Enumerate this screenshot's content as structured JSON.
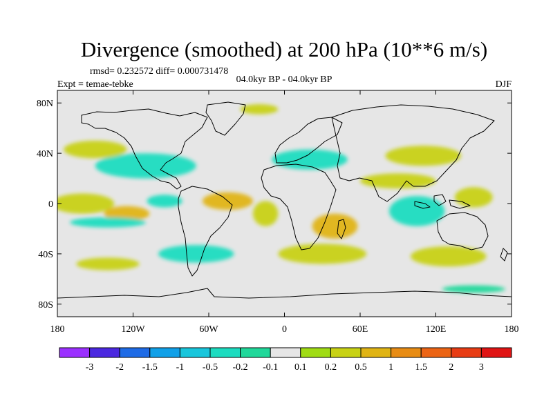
{
  "chart_data": {
    "type": "heatmap",
    "title": "Divergence (smoothed) at 200 hPa (10**6 m/s)",
    "stats_text": "rmsd= 0.232572 diff= 0.000731478",
    "experiment_text": "Expt = temae-tebke",
    "period_text": "04.0kyr BP - 04.0kyr BP",
    "season_text": "DJF",
    "xlim": [
      -180,
      180
    ],
    "ylim": [
      -90,
      90
    ],
    "x_ticks": [
      {
        "value": -180,
        "label": "180"
      },
      {
        "value": -120,
        "label": "120W"
      },
      {
        "value": -60,
        "label": "60W"
      },
      {
        "value": 0,
        "label": "0"
      },
      {
        "value": 60,
        "label": "60E"
      },
      {
        "value": 120,
        "label": "120E"
      },
      {
        "value": 180,
        "label": "180"
      }
    ],
    "y_ticks": [
      {
        "value": 80,
        "label": "80N"
      },
      {
        "value": 40,
        "label": "40N"
      },
      {
        "value": 0,
        "label": "0"
      },
      {
        "value": -40,
        "label": "40S"
      },
      {
        "value": -80,
        "label": "80S"
      }
    ],
    "colorbar": {
      "colors": [
        "#9b30ff",
        "#4b28e0",
        "#1e6be6",
        "#10a0e8",
        "#18c6dc",
        "#1cdcc0",
        "#20d89a",
        "#e6e6e6",
        "#a0dc14",
        "#c8d214",
        "#e0b414",
        "#e88c14",
        "#ec6414",
        "#e83c14",
        "#e01414"
      ],
      "labels": [
        "-3",
        "-2",
        "-1.5",
        "-1",
        "-0.5",
        "-0.2",
        "-0.1",
        "0.1",
        "0.2",
        "0.5",
        "1",
        "1.5",
        "2",
        "3"
      ]
    },
    "field_blobs": [
      {
        "lon": -160,
        "lat": 0,
        "rlon": 25,
        "rlat": 8,
        "value": 0.4
      },
      {
        "lon": -125,
        "lat": -8,
        "rlon": 18,
        "rlat": 6,
        "value": 0.6
      },
      {
        "lon": -140,
        "lat": -15,
        "rlon": 30,
        "rlat": 4,
        "value": -0.3
      },
      {
        "lon": -95,
        "lat": 2,
        "rlon": 14,
        "rlat": 5,
        "value": -0.3
      },
      {
        "lon": -45,
        "lat": 2,
        "rlon": 20,
        "rlat": 7,
        "value": 0.6
      },
      {
        "lon": -15,
        "lat": -8,
        "rlon": 10,
        "rlat": 10,
        "value": 0.4
      },
      {
        "lon": 40,
        "lat": -18,
        "rlon": 18,
        "rlat": 10,
        "value": 0.5
      },
      {
        "lon": 105,
        "lat": -6,
        "rlon": 22,
        "rlat": 12,
        "value": -0.4
      },
      {
        "lon": 150,
        "lat": 5,
        "rlon": 15,
        "rlat": 8,
        "value": 0.3
      },
      {
        "lon": -110,
        "lat": 30,
        "rlon": 40,
        "rlat": 10,
        "value": -0.3
      },
      {
        "lon": -150,
        "lat": 43,
        "rlon": 25,
        "rlat": 7,
        "value": 0.3
      },
      {
        "lon": 20,
        "lat": 35,
        "rlon": 30,
        "rlat": 8,
        "value": -0.3
      },
      {
        "lon": 110,
        "lat": 38,
        "rlon": 30,
        "rlat": 8,
        "value": 0.4
      },
      {
        "lon": 90,
        "lat": 18,
        "rlon": 30,
        "rlat": 6,
        "value": 0.2
      },
      {
        "lon": -70,
        "lat": -40,
        "rlon": 30,
        "rlat": 7,
        "value": -0.3
      },
      {
        "lon": 30,
        "lat": -40,
        "rlon": 35,
        "rlat": 8,
        "value": 0.4
      },
      {
        "lon": 130,
        "lat": -42,
        "rlon": 30,
        "rlat": 8,
        "value": 0.3
      },
      {
        "lon": -140,
        "lat": -48,
        "rlon": 25,
        "rlat": 5,
        "value": 0.2
      },
      {
        "lon": -20,
        "lat": 75,
        "rlon": 15,
        "rlat": 4,
        "value": 0.2
      },
      {
        "lon": 150,
        "lat": -68,
        "rlon": 25,
        "rlat": 3,
        "value": -0.2
      }
    ]
  }
}
